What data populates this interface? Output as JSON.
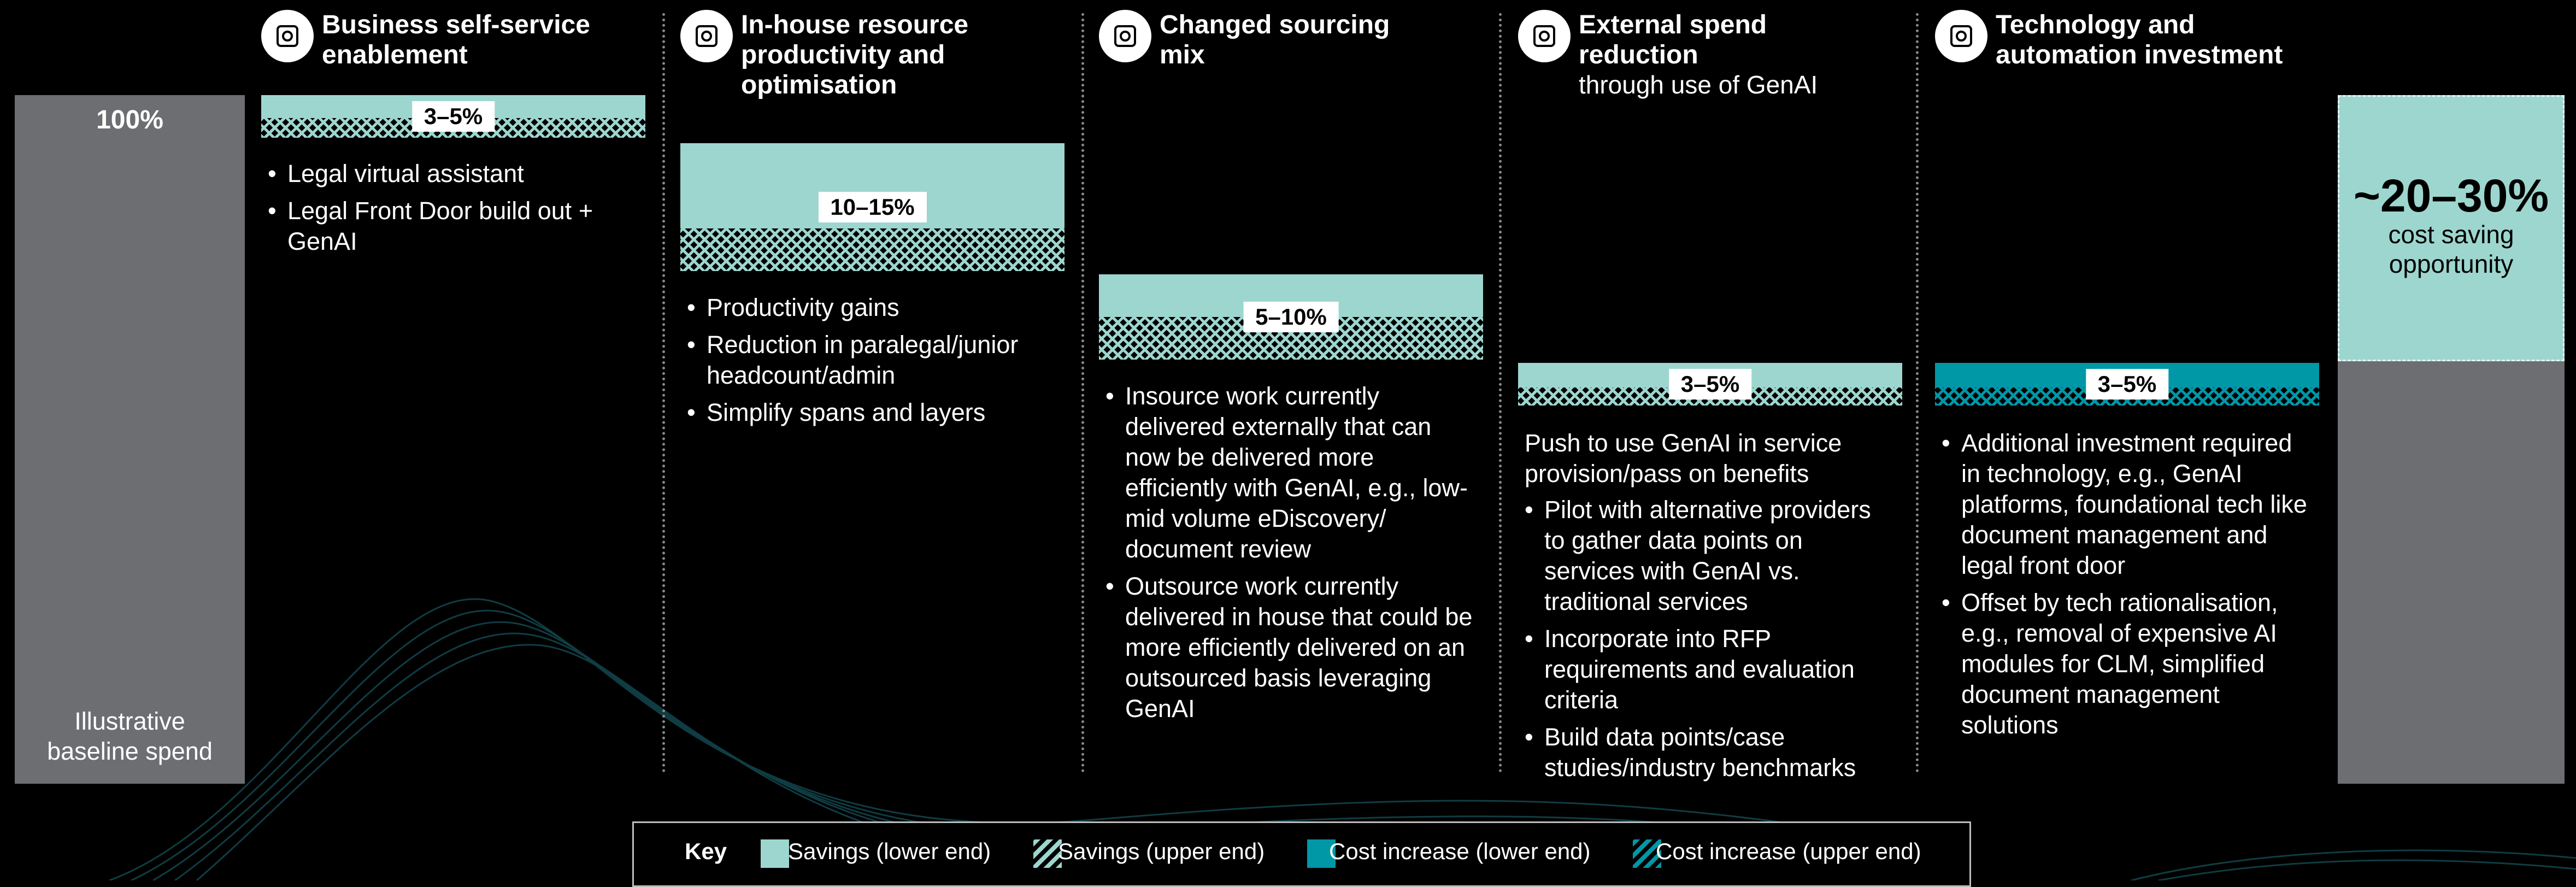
{
  "baseline": {
    "value_label": "100%",
    "label": "Illustrative baseline spend"
  },
  "levers": [
    {
      "title": "Business self-service enablement",
      "range_label": "3–5%",
      "bullets": [
        "Legal virtual assistant",
        "Legal Front Door build out + GenAI"
      ]
    },
    {
      "title": "In-house resource productivity and optimisation",
      "range_label": "10–15%",
      "bullets": [
        "Productivity gains",
        "Reduction in paralegal/junior headcount/admin",
        "Simplify spans and layers"
      ]
    },
    {
      "title": "Changed sourcing mix",
      "range_label": "5–10%",
      "bullets": [
        "Insource work currently delivered externally that can now be delivered more efficiently with GenAI, e.g., low-mid volume eDiscovery/ document review",
        "Outsource work currently delivered in house that could be more efficiently delivered on an outsourced basis leveraging GenAI"
      ]
    },
    {
      "title": "External spend reduction",
      "subtitle": "through use of GenAI",
      "range_label": "3–5%",
      "intro": "Push to use GenAI in service provision/pass on benefits",
      "bullets": [
        "Pilot with alternative providers to gather data points on services with GenAI vs. traditional services",
        "Incorporate into RFP requirements and evaluation criteria",
        "Build data points/case studies/industry benchmarks"
      ]
    },
    {
      "title": "Technology and automation investment",
      "range_label": "3–5%",
      "bullets": [
        "Additional investment required in technology, e.g., GenAI platforms, foundational tech like document management and legal front door",
        "Offset by tech rationalisation, e.g., removal of expensive AI modules for CLM, simplified document management solutions"
      ]
    }
  ],
  "result": {
    "value_label": "~20–30%",
    "label": "cost saving opportunity"
  },
  "key": {
    "title": "Key",
    "items": [
      "Savings (lower end)",
      "Savings (upper end)",
      "Cost increase (lower end)",
      "Cost increase (upper end)"
    ]
  }
}
